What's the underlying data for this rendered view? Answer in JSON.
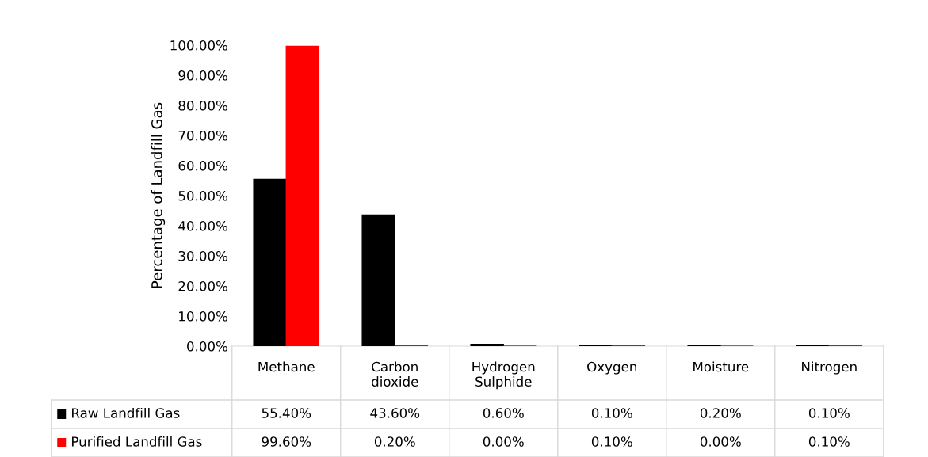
{
  "chart_data": {
    "type": "bar",
    "ylabel": "Percentage of Landfill Gas",
    "categories": [
      "Methane",
      "Carbon dioxide",
      "Hydrogen Sulphide",
      "Oxygen",
      "Moisture",
      "Nitrogen"
    ],
    "series": [
      {
        "name": "Raw Landfill Gas",
        "color": "#000000",
        "values": [
          55.4,
          43.6,
          0.6,
          0.1,
          0.2,
          0.1
        ],
        "value_labels": [
          "55.40%",
          "43.60%",
          "0.60%",
          "0.10%",
          "0.20%",
          "0.10%"
        ]
      },
      {
        "name": "Purified Landfill Gas",
        "color": "#ff0000",
        "values": [
          99.6,
          0.2,
          0.0,
          0.1,
          0.0,
          0.1
        ],
        "value_labels": [
          "99.60%",
          "0.20%",
          "0.00%",
          "0.10%",
          "0.00%",
          "0.10%"
        ]
      }
    ],
    "ylim": [
      0,
      100
    ],
    "yticks": [
      {
        "value": 0,
        "label": "0.00%"
      },
      {
        "value": 10,
        "label": "10.00%"
      },
      {
        "value": 20,
        "label": "20.00%"
      },
      {
        "value": 30,
        "label": "30.00%"
      },
      {
        "value": 40,
        "label": "40.00%"
      },
      {
        "value": 50,
        "label": "50.00%"
      },
      {
        "value": 60,
        "label": "60.00%"
      },
      {
        "value": 70,
        "label": "70.00%"
      },
      {
        "value": 80,
        "label": "80.00%"
      },
      {
        "value": 90,
        "label": "90.00%"
      },
      {
        "value": 100,
        "label": "100.00%"
      }
    ],
    "grid": false,
    "legend": "bottom"
  }
}
